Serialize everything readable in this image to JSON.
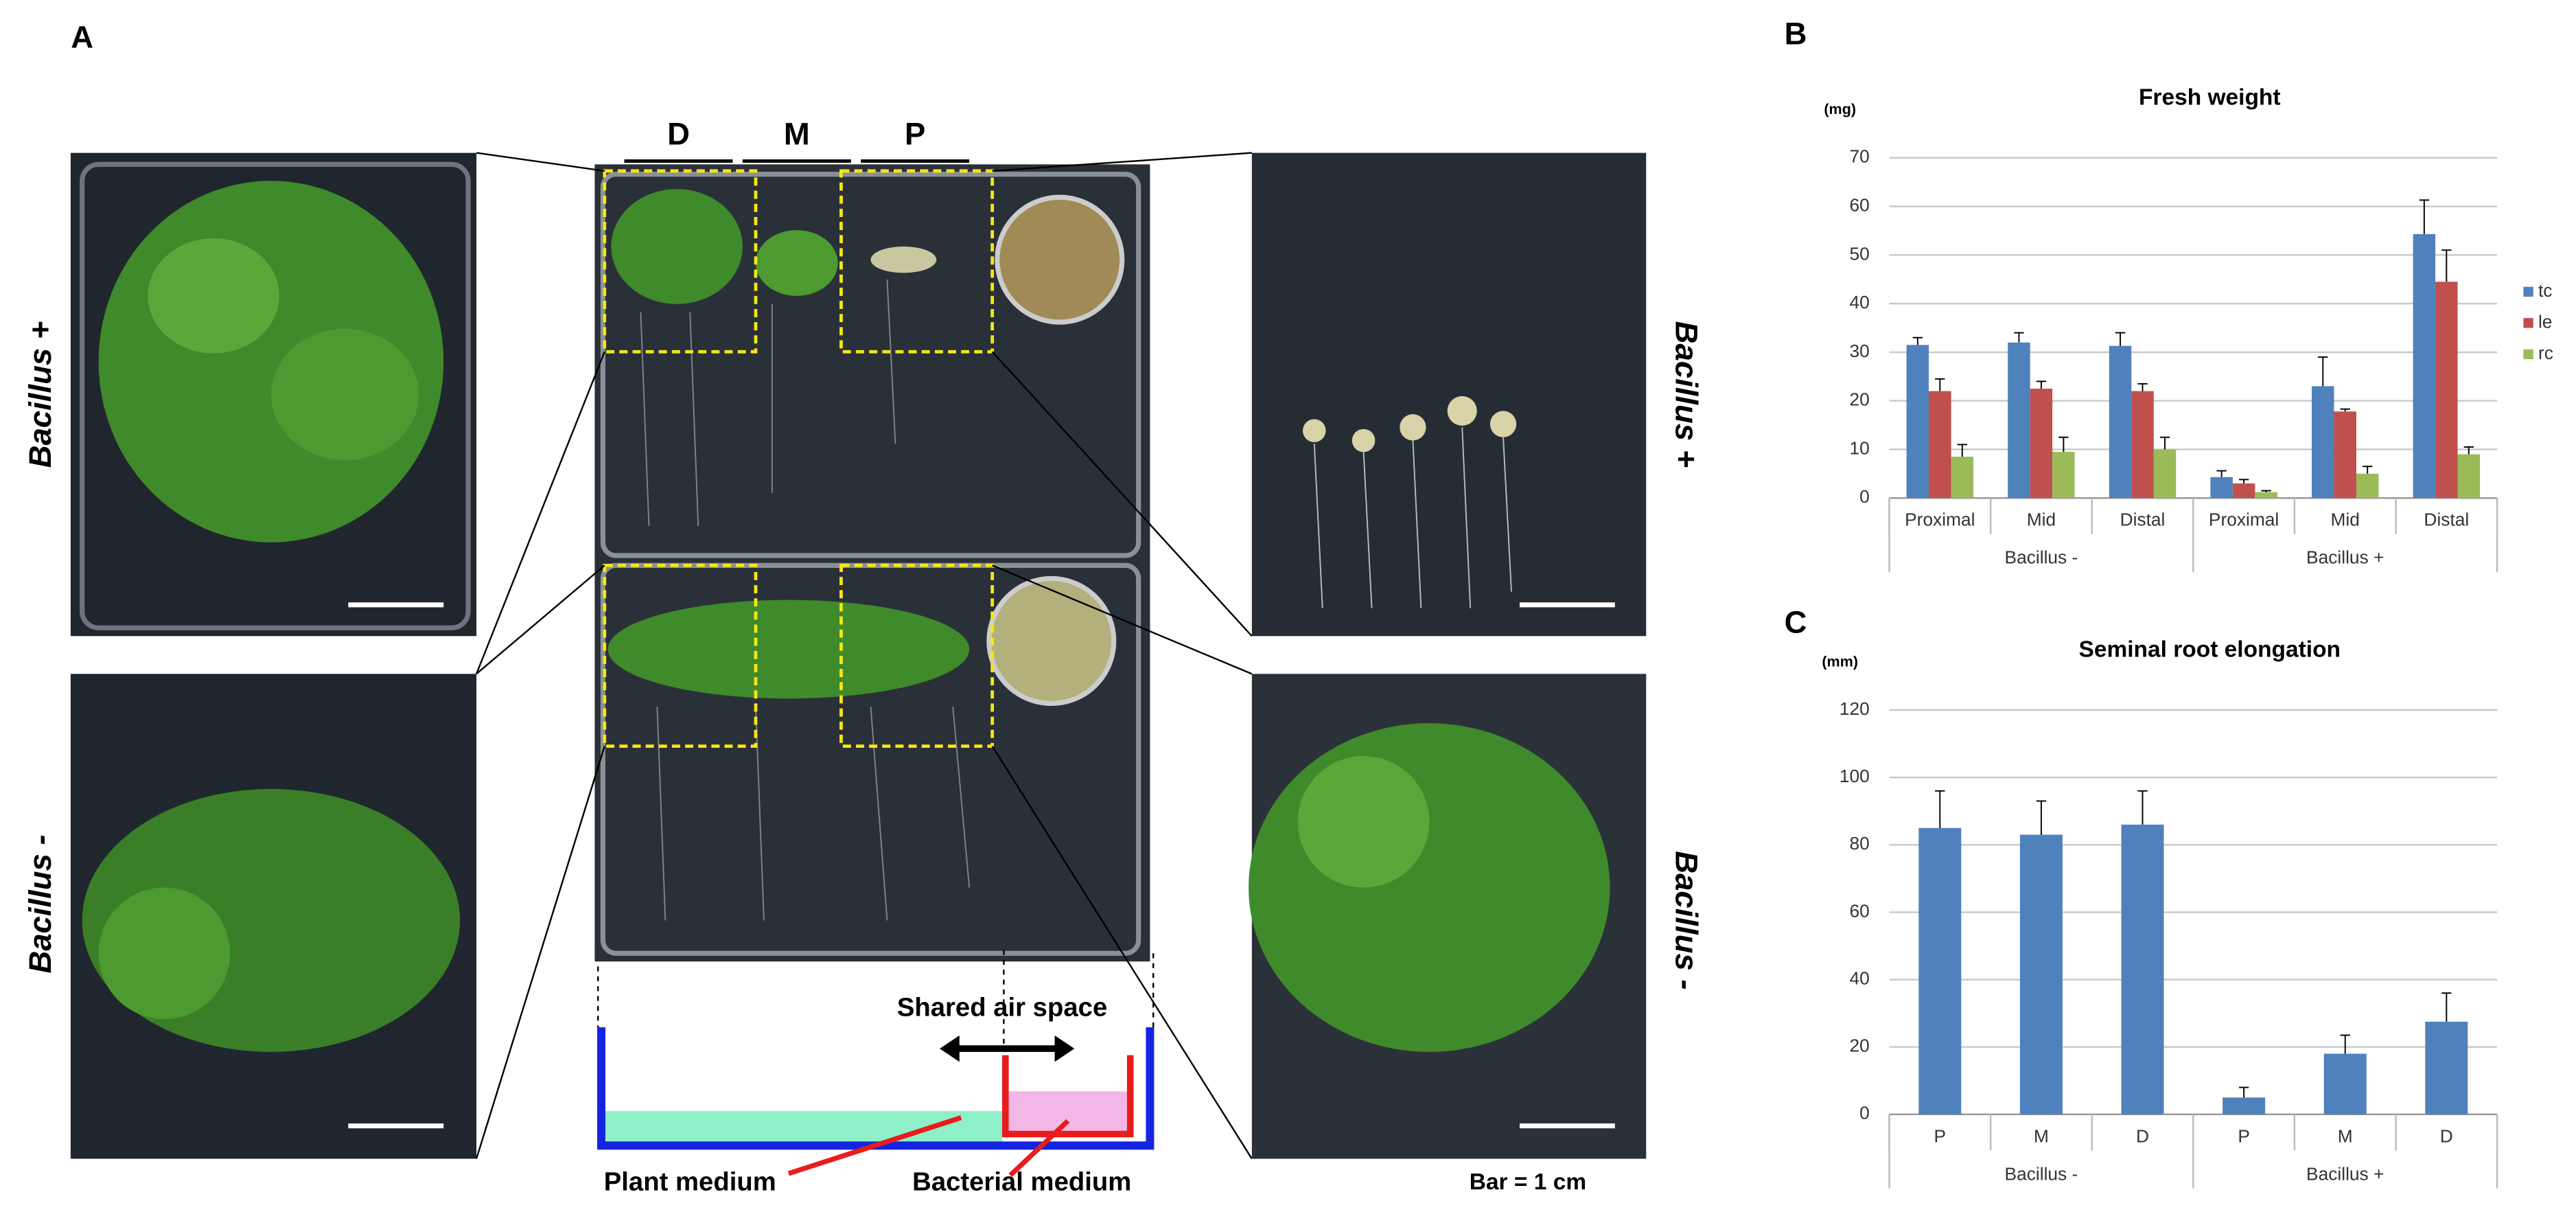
{
  "panel_a": {
    "panel": "A",
    "lanes": [
      "D",
      "M",
      "P"
    ],
    "left_labels": [
      "Bacillus +",
      "Bacillus -"
    ],
    "right_labels": [
      "Bacillus +",
      "Bacillus -"
    ],
    "air_space": "Shared air space",
    "plant_medium": "Plant medium",
    "bacterial_medium": "Bacterial medium",
    "scale_bar": "Bar = 1 cm"
  },
  "chart_data": [
    {
      "type": "bar",
      "panel": "B",
      "title": "Fresh weight",
      "unit": "(mg)",
      "categories": [
        "Proximal",
        "Mid",
        "Distal",
        "Proximal",
        "Mid",
        "Distal"
      ],
      "group_labels": [
        "Bacillus -",
        "Bacillus +"
      ],
      "series": [
        {
          "name": "tc",
          "color": "#4f81bd",
          "values": [
            31.5,
            32,
            31.3,
            4.3,
            23,
            54.3
          ],
          "errors": [
            1.5,
            2,
            2.7,
            1.3,
            6,
            7
          ]
        },
        {
          "name": "le",
          "color": "#c0504d",
          "values": [
            22,
            22.5,
            22,
            3,
            17.8,
            44.5
          ],
          "errors": [
            2.5,
            1.5,
            1.5,
            0.8,
            0.5,
            6.5
          ]
        },
        {
          "name": "rc",
          "color": "#9bbb59",
          "values": [
            8.5,
            9.5,
            10,
            1.2,
            5,
            9
          ],
          "errors": [
            2.5,
            3,
            2.5,
            0.3,
            1.5,
            1.5
          ]
        }
      ],
      "ylim": [
        0,
        70
      ],
      "yticks": [
        0,
        10,
        20,
        30,
        40,
        50,
        60,
        70
      ],
      "grid": true,
      "legend": "right"
    },
    {
      "type": "bar",
      "panel": "C",
      "title": "Seminal root elongation",
      "unit": "(mm)",
      "categories": [
        "P",
        "M",
        "D",
        "P",
        "M",
        "D"
      ],
      "group_labels": [
        "Bacillus -",
        "Bacillus +"
      ],
      "series": [
        {
          "color": "#4f81bd",
          "values": [
            85,
            83,
            86,
            5,
            18,
            27.5
          ],
          "errors": [
            11,
            10,
            10,
            3,
            5.5,
            8.5
          ]
        }
      ],
      "ylim": [
        0,
        120
      ],
      "yticks": [
        0,
        20,
        40,
        60,
        80,
        100,
        120
      ],
      "grid": true
    }
  ]
}
